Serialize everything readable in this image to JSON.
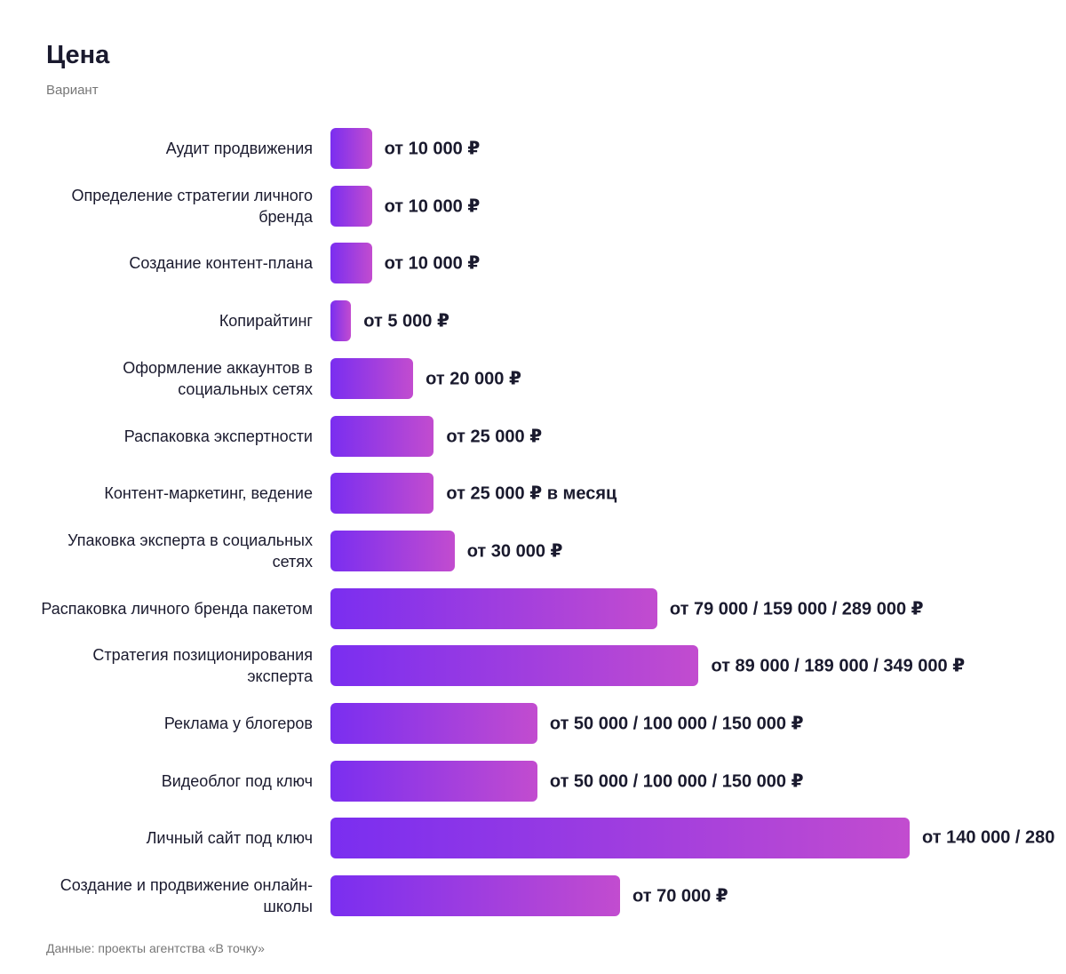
{
  "chart_data": {
    "type": "bar",
    "orientation": "horizontal",
    "title": "Цена",
    "subtitle": "Вариант",
    "categories": [
      "Аудит продвижения",
      "Определение стратегии личного бренда",
      "Создание контент-плана",
      "Копирайтинг",
      "Оформление аккаунтов в социальных сетях",
      "Распаковка экспертности",
      "Контент-маркетинг, ведение",
      "Упаковка эксперта в социальных сетях",
      "Распаковка личного бренда пакетом",
      "Стратегия позиционирования эксперта",
      "Реклама у блогеров",
      "Видеоблог под ключ",
      "Личный сайт под ключ",
      "Создание и продвижение онлайн-школы"
    ],
    "values": [
      10000,
      10000,
      10000,
      5000,
      20000,
      25000,
      25000,
      30000,
      79000,
      89000,
      50000,
      50000,
      140000,
      70000
    ],
    "value_labels": [
      "от 10 000 ₽",
      "от 10 000 ₽",
      "от 10 000 ₽",
      "от 5 000 ₽",
      "от 20 000 ₽",
      "от 25 000 ₽",
      "от 25 000 ₽ в месяц",
      "от 30 000 ₽",
      "от 79 000 / 159 000 / 289 000 ₽",
      "от 89 000 / 189 000 / 349 000 ₽",
      "от 50 000 / 100 000 / 150 000 ₽",
      "от 50 000 / 100 000 / 150 000 ₽",
      "от 140 000 / 280",
      "от 70 000 ₽"
    ],
    "gradient": [
      "#7a2ef0",
      "#c24ccf"
    ],
    "source": "Данные: проекты агентства «В точку»"
  }
}
